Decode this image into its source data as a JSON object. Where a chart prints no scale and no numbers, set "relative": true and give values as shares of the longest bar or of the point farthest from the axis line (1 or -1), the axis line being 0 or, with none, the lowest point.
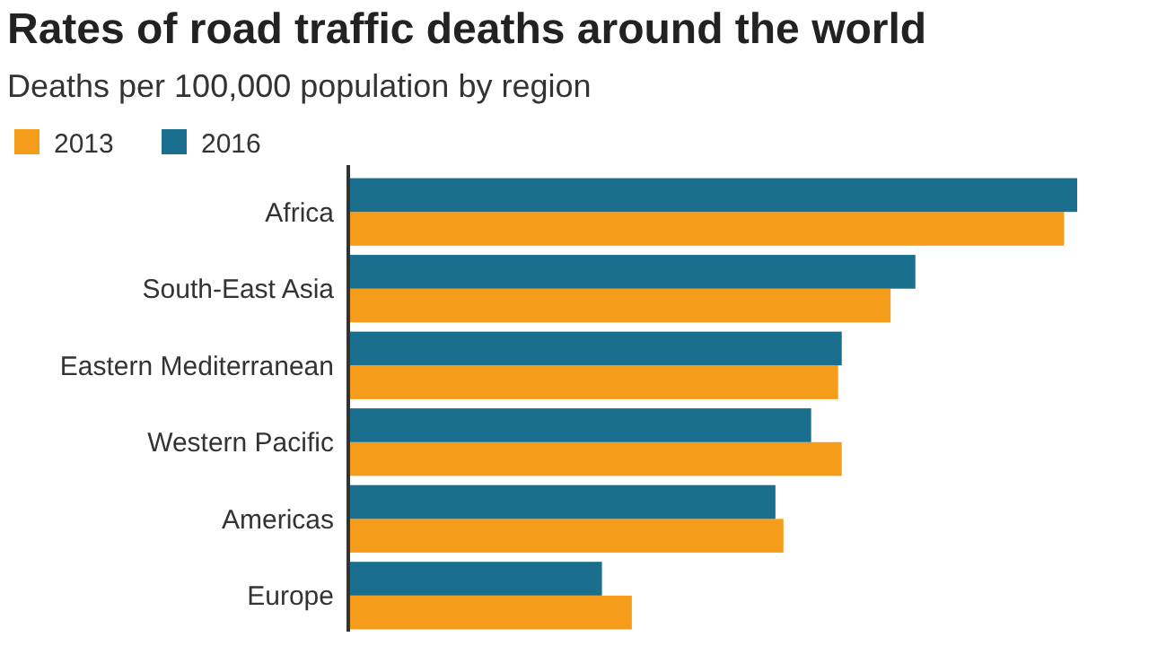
{
  "chart_data": {
    "type": "bar",
    "orientation": "horizontal",
    "relative": true,
    "title": "Rates of road traffic deaths around the world",
    "subtitle": "Deaths per 100,000 population by region",
    "categories": [
      "Africa",
      "South-East Asia",
      "Eastern Mediterranean",
      "Western Pacific",
      "Americas",
      "Europe"
    ],
    "legend": "top left",
    "series": [
      {
        "name": "2013",
        "color": "#f59c1a",
        "values": [
          0.982,
          0.744,
          0.672,
          0.677,
          0.597,
          0.389
        ]
      },
      {
        "name": "2016",
        "color": "#1a6e8e",
        "values": [
          1,
          0.778,
          0.677,
          0.635,
          0.586,
          0.348
        ]
      }
    ]
  }
}
